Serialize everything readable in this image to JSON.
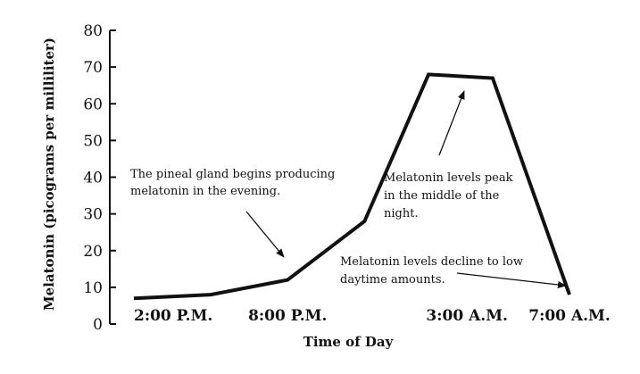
{
  "chart_data": {
    "type": "line",
    "title": "",
    "xlabel": "Time of Day",
    "ylabel": "Melatonin (picograms per milliliter)",
    "ylim": [
      0,
      80
    ],
    "yticks": [
      "0",
      "10",
      "20",
      "30",
      "40",
      "50",
      "60",
      "70",
      "80"
    ],
    "xticks": [
      "2:00 P.M.",
      "8:00 P.M.",
      "3:00 A.M.",
      "7:00 A.M."
    ],
    "grid": false,
    "series": [
      {
        "values": [
          {
            "x": "2:00 P.M.",
            "y": 7
          },
          {
            "x": "5:00 P.M.",
            "y": 8
          },
          {
            "x": "8:00 P.M.",
            "y": 12
          },
          {
            "x": "11:00 P.M.",
            "y": 28
          },
          {
            "x": "1:30 A.M.",
            "y": 68
          },
          {
            "x": "4:00 A.M.",
            "y": 67
          },
          {
            "x": "7:00 A.M.",
            "y": 8
          }
        ]
      }
    ],
    "annotations": [
      {
        "lines": [
          "The pineal gland begins producing",
          "melatonin in the evening."
        ]
      },
      {
        "lines": [
          "Melatonin levels peak",
          "in the middle of the",
          "night."
        ]
      },
      {
        "lines": [
          "Melatonin levels decline to low",
          "daytime amounts."
        ]
      }
    ]
  }
}
